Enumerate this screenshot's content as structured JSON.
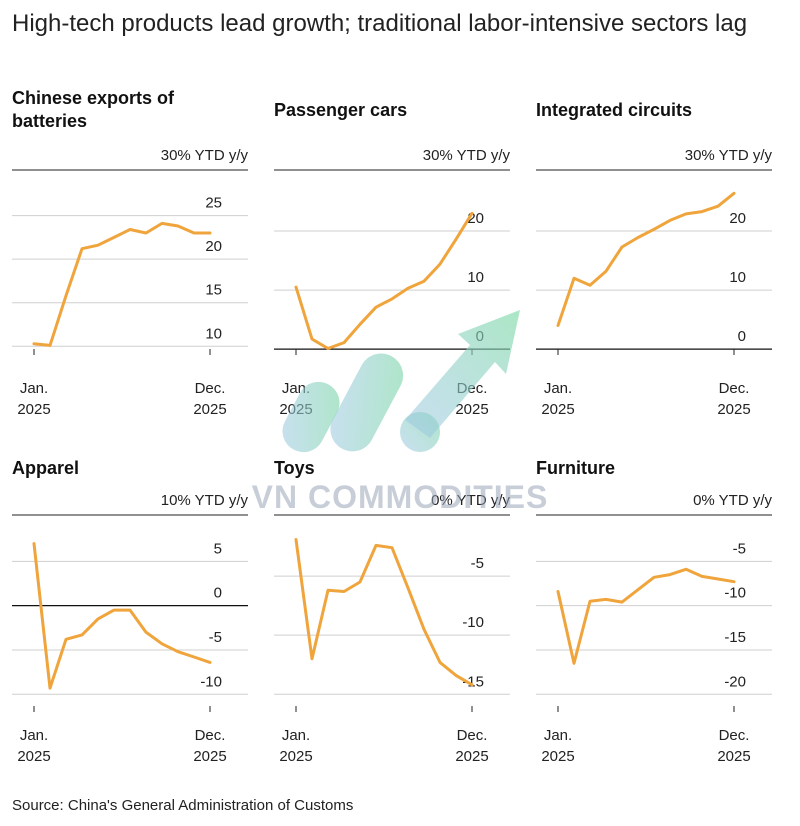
{
  "headline": "High-tech products lead growth; traditional labor-intensive sectors lag",
  "source": "Source: China's General Administration of Customs",
  "watermark": {
    "text": "VN COMMODITIES"
  },
  "colors": {
    "line": "#f0a43c",
    "grid": "#cfcfcf",
    "axis": "#222222"
  },
  "chart_data": [
    {
      "type": "line",
      "title_lines": [
        "Chinese exports of",
        "batteries"
      ],
      "unit_label": "30% YTD y/y",
      "x_labels": [
        [
          "Jan.",
          "2025"
        ],
        [
          "Dec.",
          "2025"
        ]
      ],
      "ylim": [
        9,
        30
      ],
      "yticks": [
        10,
        15,
        20,
        25
      ],
      "tick_labels": [
        "10",
        "15",
        "20",
        "25"
      ],
      "zero_line": false,
      "x": [
        "Jan",
        "Feb",
        "Mar",
        "Apr",
        "May",
        "Jun",
        "Jul",
        "Aug",
        "Sep",
        "Oct",
        "Nov",
        "Dec"
      ],
      "values": [
        10.3,
        10.1,
        15.8,
        21.2,
        21.6,
        22.5,
        23.4,
        23.0,
        24.1,
        23.8,
        23.0,
        23.0
      ]
    },
    {
      "type": "line",
      "title_lines": [
        "Passenger cars"
      ],
      "unit_label": "30% YTD y/y",
      "x_labels": [
        [
          "Jan.",
          "2025"
        ],
        [
          "Dec.",
          "2025"
        ]
      ],
      "ylim": [
        -1,
        30
      ],
      "yticks": [
        0,
        10,
        20
      ],
      "tick_labels": [
        "0",
        "10",
        "20"
      ],
      "zero_line": true,
      "x": [
        "Jan",
        "Feb",
        "Mar",
        "Apr",
        "May",
        "Jun",
        "Jul",
        "Aug",
        "Sep",
        "Oct",
        "Nov",
        "Dec"
      ],
      "values": [
        10.5,
        1.7,
        0.1,
        1.1,
        4.2,
        7.1,
        8.5,
        10.3,
        11.5,
        14.4,
        18.6,
        23.0
      ]
    },
    {
      "type": "line",
      "title_lines": [
        "Integrated circuits"
      ],
      "unit_label": "30% YTD y/y",
      "x_labels": [
        [
          "Jan.",
          "2025"
        ],
        [
          "Dec.",
          "2025"
        ]
      ],
      "ylim": [
        -1,
        30
      ],
      "yticks": [
        0,
        10,
        20
      ],
      "tick_labels": [
        "0",
        "10",
        "20"
      ],
      "zero_line": true,
      "x": [
        "Jan",
        "Feb",
        "Mar",
        "Apr",
        "May",
        "Jun",
        "Jul",
        "Aug",
        "Sep",
        "Oct",
        "Nov",
        "Dec"
      ],
      "values": [
        4.0,
        12.0,
        10.8,
        13.2,
        17.3,
        18.9,
        20.3,
        21.8,
        22.9,
        23.3,
        24.2,
        26.4
      ]
    },
    {
      "type": "line",
      "title_lines": [
        "Apparel"
      ],
      "unit_label": "10% YTD y/y",
      "x_labels": [
        [
          "Jan.",
          "2025"
        ],
        [
          "Dec.",
          "2025"
        ]
      ],
      "ylim": [
        -12,
        10
      ],
      "yticks": [
        -10,
        -5,
        0,
        5
      ],
      "tick_labels": [
        "-10",
        "-5",
        "0",
        "5"
      ],
      "zero_line": true,
      "x": [
        "Jan",
        "Feb",
        "Mar",
        "Apr",
        "May",
        "Jun",
        "Jul",
        "Aug",
        "Sep",
        "Oct",
        "Nov",
        "Dec"
      ],
      "values": [
        7.0,
        -9.3,
        -3.8,
        -3.3,
        -1.5,
        -0.5,
        -0.5,
        -3.0,
        -4.3,
        -5.2,
        -5.8,
        -6.4
      ]
    },
    {
      "type": "line",
      "title_lines": [
        "Toys"
      ],
      "unit_label": "0% YTD y/y",
      "x_labels": [
        [
          "Jan.",
          "2025"
        ],
        [
          "Dec.",
          "2025"
        ]
      ],
      "ylim": [
        -16.5,
        0
      ],
      "yticks": [
        -15,
        -10,
        -5
      ],
      "tick_labels": [
        "-15",
        "-10",
        "-5"
      ],
      "zero_line": false,
      "x": [
        "Jan",
        "Feb",
        "Mar",
        "Apr",
        "May",
        "Jun",
        "Jul",
        "Aug",
        "Sep",
        "Oct",
        "Nov",
        "Dec"
      ],
      "values": [
        -1.9,
        -12.0,
        -6.2,
        -6.3,
        -5.5,
        -2.4,
        -2.6,
        -6.0,
        -9.5,
        -12.3,
        -13.4,
        -14.2
      ]
    },
    {
      "type": "line",
      "title_lines": [
        "Furniture"
      ],
      "unit_label": "0% YTD y/y",
      "x_labels": [
        [
          "Jan.",
          "2025"
        ],
        [
          "Dec.",
          "2025"
        ]
      ],
      "ylim": [
        -22,
        0
      ],
      "yticks": [
        -20,
        -15,
        -10,
        -5
      ],
      "tick_labels": [
        "-20",
        "-15",
        "-10",
        "-5"
      ],
      "zero_line": false,
      "x": [
        "Jan",
        "Feb",
        "Mar",
        "Apr",
        "May",
        "Jun",
        "Jul",
        "Aug",
        "Sep",
        "Oct",
        "Nov",
        "Dec"
      ],
      "values": [
        -8.4,
        -16.5,
        -9.5,
        -9.3,
        -9.6,
        -8.2,
        -6.8,
        -6.5,
        -5.9,
        -6.7,
        -7.0,
        -7.3
      ]
    }
  ]
}
